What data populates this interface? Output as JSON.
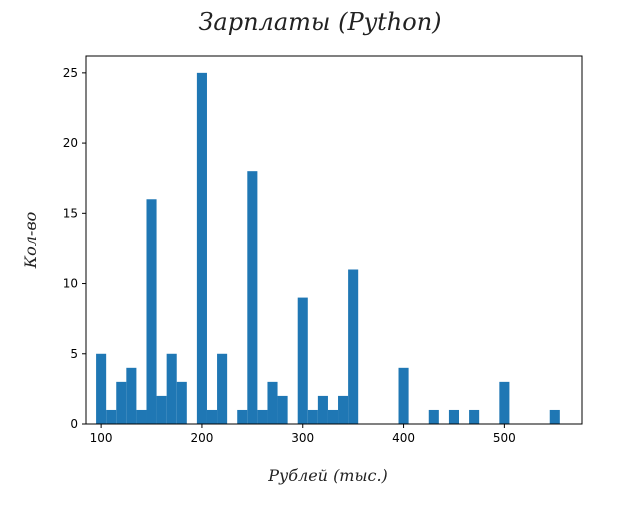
{
  "chart_data": {
    "type": "bar",
    "subtype": "histogram",
    "title": "Зарплаты (Python)",
    "xlabel": "Рублей (тыс.)",
    "ylabel": "Кол-во",
    "xlim": [
      85,
      577
    ],
    "ylim": [
      0,
      26.2
    ],
    "xticks": [
      100,
      200,
      300,
      400,
      500
    ],
    "yticks": [
      0,
      5,
      10,
      15,
      20,
      25
    ],
    "bin_width": 10,
    "bar_color": "#1f77b4",
    "bins": [
      {
        "x": 100,
        "value": 5
      },
      {
        "x": 110,
        "value": 1
      },
      {
        "x": 120,
        "value": 3
      },
      {
        "x": 130,
        "value": 4
      },
      {
        "x": 140,
        "value": 1
      },
      {
        "x": 150,
        "value": 16
      },
      {
        "x": 160,
        "value": 2
      },
      {
        "x": 170,
        "value": 5
      },
      {
        "x": 180,
        "value": 3
      },
      {
        "x": 190,
        "value": 0
      },
      {
        "x": 200,
        "value": 25
      },
      {
        "x": 210,
        "value": 1
      },
      {
        "x": 220,
        "value": 5
      },
      {
        "x": 230,
        "value": 0
      },
      {
        "x": 240,
        "value": 1
      },
      {
        "x": 250,
        "value": 18
      },
      {
        "x": 260,
        "value": 1
      },
      {
        "x": 270,
        "value": 3
      },
      {
        "x": 280,
        "value": 2
      },
      {
        "x": 290,
        "value": 0
      },
      {
        "x": 300,
        "value": 9
      },
      {
        "x": 310,
        "value": 1
      },
      {
        "x": 320,
        "value": 2
      },
      {
        "x": 330,
        "value": 1
      },
      {
        "x": 340,
        "value": 2
      },
      {
        "x": 350,
        "value": 11
      },
      {
        "x": 400,
        "value": 4
      },
      {
        "x": 430,
        "value": 1
      },
      {
        "x": 450,
        "value": 1
      },
      {
        "x": 470,
        "value": 1
      },
      {
        "x": 500,
        "value": 3
      },
      {
        "x": 550,
        "value": 1
      }
    ]
  }
}
